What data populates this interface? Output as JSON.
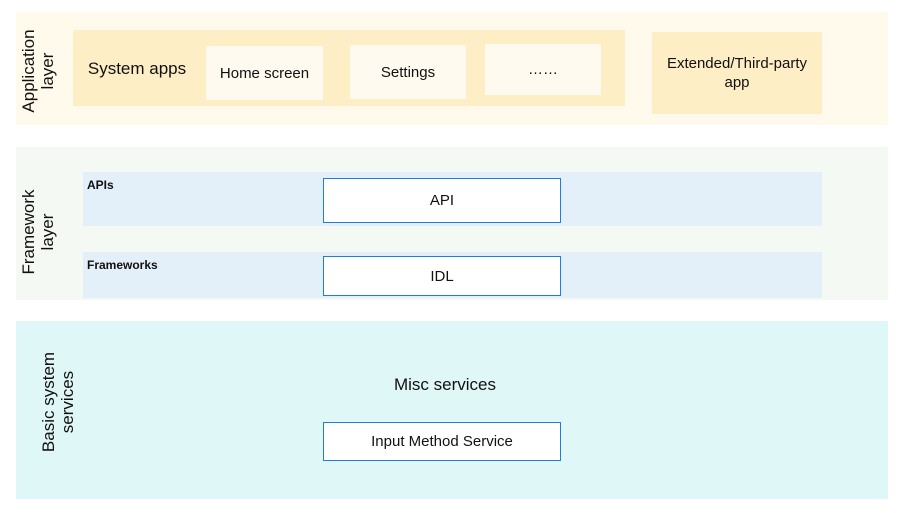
{
  "application_layer": {
    "label": "Application\nlayer",
    "system_apps": {
      "label": "System apps",
      "items": [
        "Home screen",
        "Settings",
        "……"
      ]
    },
    "extended": "Extended/Third-party app"
  },
  "framework_layer": {
    "label": "Framework\nlayer",
    "apis": {
      "label": "APIs",
      "box": "API"
    },
    "frameworks": {
      "label": "Frameworks",
      "box": "IDL"
    }
  },
  "basic_layer": {
    "label": "Basic system\nservices",
    "group": "Misc services",
    "box": "Input Method Service"
  },
  "colors": {
    "app_outer": "#fffaeb",
    "app_inner": "#fdeec5",
    "framework_outer": "#f5f9f3",
    "framework_band": "#e3f0fa",
    "basic_outer": "#e0f7f7",
    "box_border": "#1e7ee0"
  }
}
